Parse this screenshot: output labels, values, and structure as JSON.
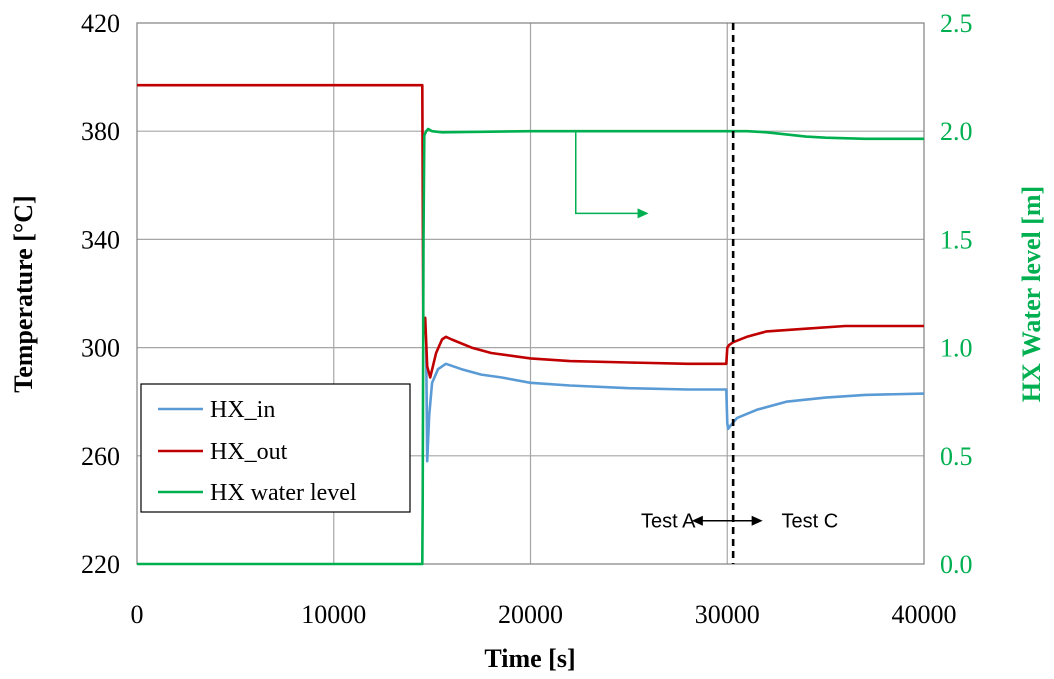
{
  "chart_data": {
    "type": "line",
    "xlabel": "Time [s]",
    "ylabel": "Temperature [°C]",
    "y2label": "HX Water level [m]",
    "xlim": [
      0,
      40000
    ],
    "ylim": [
      220,
      420
    ],
    "y2lim": [
      0.0,
      2.5
    ],
    "xticks": [
      "0",
      "10000",
      "20000",
      "30000",
      "40000"
    ],
    "yticks": [
      "220",
      "260",
      "300",
      "340",
      "380",
      "420"
    ],
    "y2ticks": [
      "0.0",
      "0.5",
      "1.0",
      "1.5",
      "2.0",
      "2.5"
    ],
    "grid": true,
    "legend_position": "lower-left",
    "colors": {
      "axis2": "#00b050"
    },
    "series": [
      {
        "name": "HX_in",
        "axis": "left",
        "color": "#5b9bd5",
        "x": [
          14700,
          14750,
          14850,
          15000,
          15300,
          15700,
          16500,
          17500,
          18500,
          20000,
          22000,
          25000,
          28000,
          29950,
          30000,
          30050,
          30150,
          30500,
          31500,
          33000,
          35000,
          37000,
          40000
        ],
        "y": [
          300,
          258,
          275,
          287,
          292,
          294,
          292,
          290,
          289,
          287,
          286,
          285,
          284.5,
          284.5,
          272,
          270,
          271,
          274,
          277,
          280,
          281.5,
          282.5,
          283
        ]
      },
      {
        "name": "HX_out",
        "axis": "left",
        "color": "#c00000",
        "x": [
          0,
          14450,
          14500,
          14550,
          14650,
          14750,
          14900,
          15200,
          15500,
          15700,
          16000,
          17000,
          18000,
          20000,
          22000,
          25000,
          28000,
          29950,
          30000,
          30100,
          30300,
          31000,
          32000,
          34000,
          36000,
          40000
        ],
        "y": [
          397,
          397,
          397,
          305,
          311,
          293,
          289,
          298,
          303,
          304,
          303,
          300,
          298,
          296,
          295,
          294.5,
          294,
          294,
          300,
          301,
          302,
          304,
          306,
          307,
          308,
          308
        ]
      },
      {
        "name": "HX water level",
        "axis": "right",
        "color": "#00b050",
        "x": [
          0,
          14500,
          14520,
          14560,
          14600,
          14700,
          14800,
          15000,
          15500,
          20000,
          25000,
          30000,
          31000,
          32000,
          33000,
          34000,
          35000,
          37000,
          40000
        ],
        "y": [
          0.0,
          0.0,
          0.3,
          1.5,
          1.98,
          2.0,
          2.01,
          2.0,
          1.995,
          2.0,
          2.0,
          2.0,
          2.0,
          1.995,
          1.985,
          1.975,
          1.97,
          1.965,
          1.965
        ]
      }
    ],
    "annotations": [
      {
        "text": "Test A",
        "x": 27000,
        "y": 0.2,
        "axis": "right"
      },
      {
        "text": "Test C",
        "x": 34200,
        "y": 0.2,
        "axis": "right"
      }
    ],
    "vline_x": 30300,
    "arrow_start": {
      "x": 22300,
      "y": 2.0
    },
    "arrow_end": {
      "x": 26000,
      "y": 1.62
    }
  }
}
